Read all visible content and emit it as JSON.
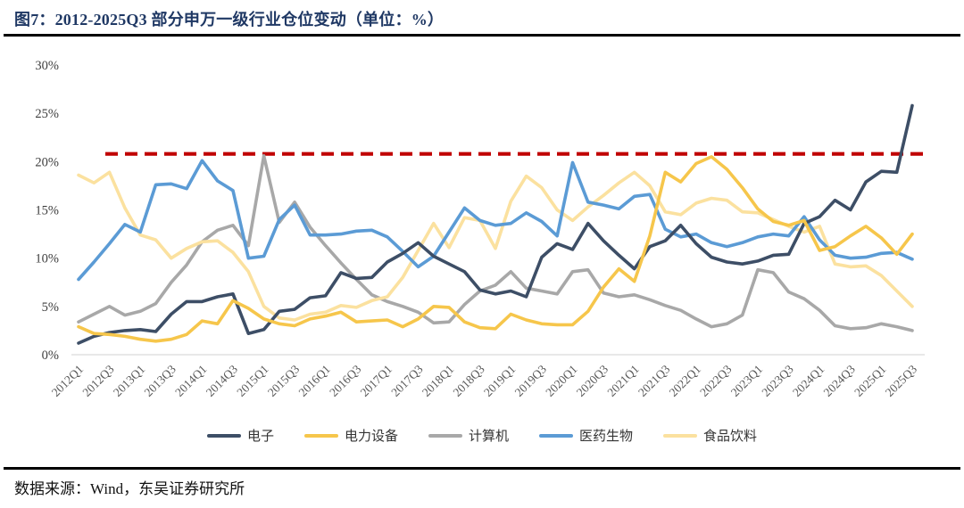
{
  "header": {
    "title": "图7：2012-2025Q3 部分申万一级行业仓位变动（单位：%）"
  },
  "footer": {
    "source": "数据来源：Wind，东吴证券研究所"
  },
  "chart_data": {
    "type": "line",
    "title": "图7：2012-2025Q3 部分申万一级行业仓位变动（单位：%）",
    "xlabel": "",
    "ylabel": "",
    "ylim": [
      0,
      30
    ],
    "grid": false,
    "legend_position": "bottom",
    "axis_color": "#D9D9D9",
    "tick_color": "#595959",
    "y_ticks": [
      "0%",
      "5%",
      "10%",
      "15%",
      "20%",
      "25%",
      "30%"
    ],
    "reference_line": {
      "value": 20.8,
      "color": "#C00000",
      "style": "dashed"
    },
    "x": [
      "2012Q1",
      "2012Q2",
      "2012Q3",
      "2012Q4",
      "2013Q1",
      "2013Q2",
      "2013Q3",
      "2013Q4",
      "2014Q1",
      "2014Q2",
      "2014Q3",
      "2014Q4",
      "2015Q1",
      "2015Q2",
      "2015Q3",
      "2015Q4",
      "2016Q1",
      "2016Q2",
      "2016Q3",
      "2016Q4",
      "2017Q1",
      "2017Q2",
      "2017Q3",
      "2017Q4",
      "2018Q1",
      "2018Q2",
      "2018Q3",
      "2018Q4",
      "2019Q1",
      "2019Q2",
      "2019Q3",
      "2019Q4",
      "2020Q1",
      "2020Q2",
      "2020Q3",
      "2020Q4",
      "2021Q1",
      "2021Q2",
      "2021Q3",
      "2021Q4",
      "2022Q1",
      "2022Q2",
      "2022Q3",
      "2022Q4",
      "2023Q1",
      "2023Q2",
      "2023Q3",
      "2023Q4",
      "2024Q1",
      "2024Q2",
      "2024Q3",
      "2024Q4",
      "2025Q1",
      "2025Q2",
      "2025Q3"
    ],
    "x_tick_labels": [
      "2012Q1",
      "2012Q3",
      "2013Q1",
      "2013Q3",
      "2014Q1",
      "2014Q3",
      "2015Q1",
      "2015Q3",
      "2016Q1",
      "2016Q3",
      "2017Q1",
      "2017Q3",
      "2018Q1",
      "2018Q3",
      "2019Q1",
      "2019Q3",
      "2020Q1",
      "2020Q3",
      "2021Q1",
      "2021Q3",
      "2022Q1",
      "2022Q3",
      "2023Q1",
      "2023Q3",
      "2024Q1",
      "2024Q3",
      "2025Q1",
      "2025Q3"
    ],
    "series": [
      {
        "id": "electronics",
        "name": "电子",
        "color": "#3D4E66",
        "values": [
          1.2,
          1.9,
          2.3,
          2.5,
          2.6,
          2.4,
          4.2,
          5.5,
          5.5,
          6.0,
          6.3,
          2.2,
          2.6,
          4.5,
          4.7,
          5.9,
          6.1,
          8.5,
          7.9,
          8.0,
          9.6,
          10.5,
          11.6,
          10.2,
          9.4,
          8.6,
          6.7,
          6.3,
          6.6,
          6.0,
          10.1,
          11.5,
          10.9,
          13.6,
          11.8,
          10.3,
          8.9,
          11.2,
          11.8,
          13.4,
          11.5,
          10.1,
          9.6,
          9.4,
          9.7,
          10.3,
          10.4,
          13.6,
          14.3,
          16.0,
          15.0,
          17.9,
          19.0,
          18.9,
          25.8
        ]
      },
      {
        "id": "power-equipment",
        "name": "电力设备",
        "color": "#F6C64B",
        "values": [
          2.9,
          2.2,
          2.1,
          1.9,
          1.6,
          1.4,
          1.6,
          2.1,
          3.5,
          3.2,
          5.6,
          4.8,
          3.7,
          3.2,
          3.0,
          3.7,
          4.0,
          4.4,
          3.4,
          3.5,
          3.6,
          2.9,
          3.7,
          5.0,
          4.9,
          3.4,
          2.8,
          2.7,
          4.2,
          3.6,
          3.2,
          3.1,
          3.1,
          4.5,
          7.0,
          8.9,
          7.6,
          12.3,
          18.9,
          17.9,
          19.8,
          20.5,
          19.2,
          17.3,
          15.1,
          13.8,
          13.4,
          13.9,
          10.8,
          11.2,
          12.3,
          13.3,
          12.1,
          10.4,
          12.5
        ]
      },
      {
        "id": "computer",
        "name": "计算机",
        "color": "#A8A8A8",
        "values": [
          3.4,
          4.2,
          5.0,
          4.1,
          4.5,
          5.3,
          7.5,
          9.3,
          11.7,
          12.9,
          13.4,
          11.3,
          20.6,
          13.7,
          15.8,
          13.2,
          11.3,
          9.5,
          7.8,
          6.2,
          5.5,
          5.0,
          4.4,
          3.3,
          3.4,
          5.2,
          6.6,
          7.2,
          8.6,
          6.9,
          6.6,
          6.3,
          8.6,
          8.8,
          6.4,
          6.0,
          6.2,
          5.7,
          5.1,
          4.6,
          3.7,
          2.9,
          3.2,
          4.1,
          8.8,
          8.5,
          6.5,
          5.8,
          4.6,
          3.0,
          2.7,
          2.8,
          3.2,
          2.9,
          2.5
        ]
      },
      {
        "id": "pharma-bio",
        "name": "医药生物",
        "color": "#5B9BD5",
        "values": [
          7.8,
          9.6,
          11.5,
          13.5,
          12.7,
          17.6,
          17.7,
          17.2,
          20.1,
          18.0,
          17.0,
          10.0,
          10.2,
          14.0,
          15.5,
          12.4,
          12.4,
          12.5,
          12.8,
          12.9,
          12.2,
          10.7,
          9.1,
          10.2,
          12.7,
          15.2,
          13.9,
          13.4,
          13.6,
          14.7,
          13.8,
          12.3,
          19.9,
          15.8,
          15.5,
          15.1,
          16.4,
          16.6,
          13.0,
          12.2,
          12.5,
          11.6,
          11.2,
          11.6,
          12.2,
          12.5,
          12.3,
          14.3,
          11.9,
          10.3,
          10.0,
          10.1,
          10.5,
          10.6,
          9.9
        ]
      },
      {
        "id": "food-beverage",
        "name": "食品饮料",
        "color": "#FBE19F",
        "values": [
          18.6,
          17.8,
          18.9,
          15.2,
          12.4,
          11.9,
          10.0,
          11.0,
          11.7,
          11.8,
          10.6,
          8.6,
          5.0,
          3.8,
          3.6,
          4.2,
          4.4,
          5.1,
          4.9,
          5.6,
          6.0,
          8.0,
          10.8,
          13.6,
          11.1,
          14.2,
          13.9,
          11.0,
          15.9,
          18.5,
          17.3,
          15.0,
          13.9,
          15.3,
          16.5,
          17.8,
          18.9,
          17.5,
          14.8,
          14.5,
          15.7,
          16.2,
          16.0,
          14.8,
          14.7,
          14.0,
          13.3,
          12.7,
          13.3,
          9.4,
          9.1,
          9.2,
          8.2,
          6.6,
          5.0
        ]
      }
    ]
  }
}
